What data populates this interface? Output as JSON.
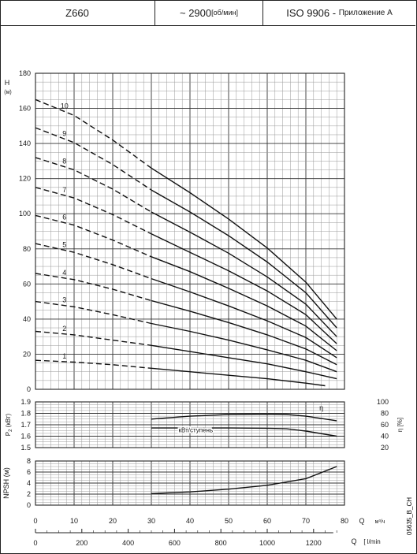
{
  "header": {
    "model": "Z660",
    "speed_value": "~ 2900",
    "speed_unit": "[об/мин]",
    "standard": "ISO 9906 - ",
    "standard_annex": "Приложение А"
  },
  "side_code": "05635_B_CH",
  "chart_data": [
    {
      "id": "head",
      "type": "line",
      "ylabel": "Н",
      "yunit": "(м)",
      "xlim": [
        0,
        80
      ],
      "ylim": [
        0,
        180
      ],
      "yticks": [
        0,
        20,
        40,
        60,
        80,
        100,
        120,
        140,
        160,
        180
      ],
      "grid": true,
      "solid_from_x": 30,
      "series": [
        {
          "name": "1",
          "x": [
            0,
            10,
            20,
            30,
            40,
            50,
            60,
            70,
            75
          ],
          "y": [
            16.5,
            15.5,
            14,
            12,
            10,
            8,
            6,
            3.5,
            2
          ]
        },
        {
          "name": "2",
          "x": [
            0,
            10,
            20,
            30,
            40,
            50,
            60,
            70,
            78
          ],
          "y": [
            33,
            31,
            28,
            25,
            21.5,
            18,
            14.5,
            10,
            6
          ]
        },
        {
          "name": "3",
          "x": [
            0,
            10,
            20,
            30,
            40,
            50,
            60,
            70,
            78
          ],
          "y": [
            50,
            47,
            42.5,
            37.5,
            33,
            28,
            22.5,
            16.5,
            10
          ]
        },
        {
          "name": "4",
          "x": [
            0,
            10,
            20,
            30,
            40,
            50,
            60,
            70,
            78
          ],
          "y": [
            66,
            62.5,
            57,
            50.5,
            44.5,
            38,
            31,
            23,
            14
          ]
        },
        {
          "name": "5",
          "x": [
            0,
            10,
            20,
            30,
            40,
            50,
            60,
            70,
            78
          ],
          "y": [
            83,
            78,
            71,
            63,
            55.5,
            47.5,
            39,
            29.5,
            18
          ]
        },
        {
          "name": "6",
          "x": [
            0,
            10,
            20,
            30,
            40,
            50,
            60,
            70,
            78
          ],
          "y": [
            99,
            93.5,
            85,
            75.5,
            67,
            57.5,
            47.5,
            36,
            22
          ]
        },
        {
          "name": "7",
          "x": [
            0,
            10,
            20,
            30,
            40,
            50,
            60,
            70,
            78
          ],
          "y": [
            115,
            109,
            99.5,
            88.5,
            78,
            67.5,
            56,
            42.5,
            26
          ]
        },
        {
          "name": "8",
          "x": [
            0,
            10,
            20,
            30,
            40,
            50,
            60,
            70,
            78
          ],
          "y": [
            132,
            125,
            114,
            101,
            89.5,
            77.5,
            64,
            48.5,
            30
          ]
        },
        {
          "name": "9",
          "x": [
            0,
            10,
            20,
            30,
            40,
            50,
            60,
            70,
            78
          ],
          "y": [
            149,
            140.5,
            128,
            113.5,
            101,
            87.5,
            72.5,
            55,
            35
          ]
        },
        {
          "name": "10",
          "x": [
            0,
            10,
            20,
            30,
            40,
            50,
            60,
            70,
            78
          ],
          "y": [
            165,
            156,
            142,
            126,
            112,
            97,
            80.5,
            61,
            40
          ]
        }
      ]
    },
    {
      "id": "power",
      "type": "line",
      "ylabel": "P2 (кВт)",
      "ylabel_main": "P",
      "ylabel_sub": "2",
      "ylabel_rest": " (кВт)",
      "y2label": "η [%]",
      "xlim": [
        0,
        80
      ],
      "ylim": [
        1.5,
        1.9
      ],
      "yticks": [
        1.5,
        1.6,
        1.7,
        1.8,
        1.9
      ],
      "y2lim": [
        20,
        100
      ],
      "y2ticks": [
        20,
        40,
        60,
        80,
        100
      ],
      "grid": true,
      "series": [
        {
          "name": "η",
          "axis": "y2",
          "x": [
            30,
            40,
            50,
            60,
            65,
            70,
            78
          ],
          "y": [
            70,
            75,
            78,
            78.5,
            78,
            75,
            67
          ]
        },
        {
          "name": "кВт/ступень",
          "axis": "y",
          "x": [
            30,
            40,
            50,
            60,
            65,
            70,
            78
          ],
          "y": [
            1.672,
            1.672,
            1.672,
            1.67,
            1.665,
            1.645,
            1.6
          ]
        }
      ]
    },
    {
      "id": "npsh",
      "type": "line",
      "ylabel": "NPSH (м)",
      "xlim": [
        0,
        80
      ],
      "ylim": [
        0,
        8
      ],
      "yticks": [
        0,
        2,
        4,
        6,
        8
      ],
      "grid": true,
      "series": [
        {
          "name": "",
          "x": [
            30,
            40,
            50,
            60,
            70,
            78
          ],
          "y": [
            2.1,
            2.4,
            2.9,
            3.6,
            4.8,
            7
          ]
        }
      ]
    }
  ],
  "x_axis_m3h": {
    "label": "Q",
    "unit": "м³/ч",
    "ticks": [
      0,
      10,
      20,
      30,
      40,
      50,
      60,
      70,
      80
    ]
  },
  "x_axis_lmin": {
    "label": "Q",
    "unit": "[ l/min",
    "ticks": [
      0,
      200,
      400,
      600,
      800,
      1000,
      1200
    ]
  }
}
